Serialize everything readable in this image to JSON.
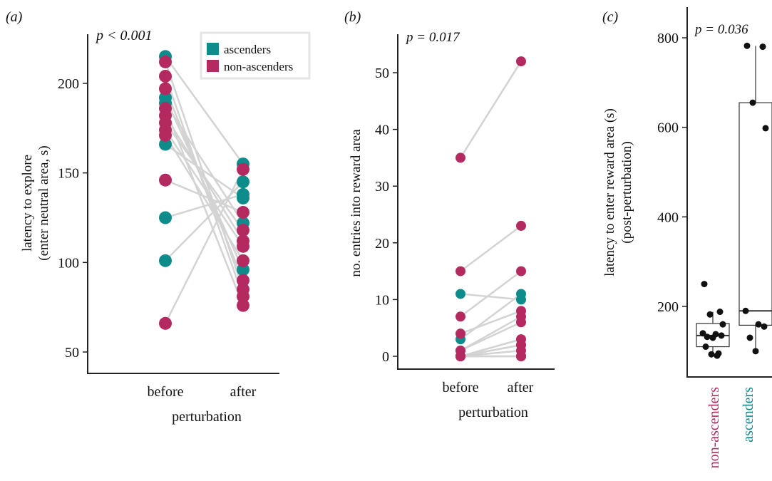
{
  "colors": {
    "ascenders": "#0e8c8c",
    "non_ascenders": "#b4295f",
    "pair_line": "#d3d3d3",
    "box_points": "#111111"
  },
  "chart_data": [
    {
      "panel_label": "(a)",
      "type": "scatter",
      "annotation": "p < 0.001",
      "ylabel_lines": [
        "latency to explore",
        "(enter neutral area, s)"
      ],
      "xlabel": "perturbation",
      "categories": [
        "before",
        "after"
      ],
      "ylim": [
        40,
        225
      ],
      "yticks": [
        50,
        100,
        150,
        200
      ],
      "legend": {
        "position": "top-right",
        "entries": [
          "ascenders",
          "non-ascenders"
        ]
      },
      "pairs": [
        {
          "group": "ascenders",
          "before": 215,
          "after": 155
        },
        {
          "group": "ascenders",
          "before": 192,
          "after": 96
        },
        {
          "group": "ascenders",
          "before": 189,
          "after": 122
        },
        {
          "group": "ascenders",
          "before": 166,
          "after": 136
        },
        {
          "group": "ascenders",
          "before": 125,
          "after": 138
        },
        {
          "group": "ascenders",
          "before": 101,
          "after": 145
        },
        {
          "group": "non-ascenders",
          "before": 212,
          "after": 85
        },
        {
          "group": "non-ascenders",
          "before": 204,
          "after": 81
        },
        {
          "group": "non-ascenders",
          "before": 197,
          "after": 90
        },
        {
          "group": "non-ascenders",
          "before": 186,
          "after": 76
        },
        {
          "group": "non-ascenders",
          "before": 182,
          "after": 112
        },
        {
          "group": "non-ascenders",
          "before": 178,
          "after": 118
        },
        {
          "group": "non-ascenders",
          "before": 174,
          "after": 109
        },
        {
          "group": "non-ascenders",
          "before": 171,
          "after": 101
        },
        {
          "group": "non-ascenders",
          "before": 146,
          "after": 128
        },
        {
          "group": "non-ascenders",
          "before": 66,
          "after": 152
        }
      ]
    },
    {
      "panel_label": "(b)",
      "type": "scatter",
      "annotation": "p = 0.017",
      "ylabel_lines": [
        "no. entries into reward area"
      ],
      "xlabel": "perturbation",
      "categories": [
        "before",
        "after"
      ],
      "ylim": [
        -2,
        55
      ],
      "yticks": [
        0,
        10,
        20,
        30,
        40,
        50
      ],
      "pairs": [
        {
          "group": "non-ascenders",
          "before": 35,
          "after": 52
        },
        {
          "group": "non-ascenders",
          "before": 15,
          "after": 23
        },
        {
          "group": "ascenders",
          "before": 11,
          "after": 10
        },
        {
          "group": "non-ascenders",
          "before": 7,
          "after": 15
        },
        {
          "group": "non-ascenders",
          "before": 4,
          "after": 8
        },
        {
          "group": "ascenders",
          "before": 3,
          "after": 11
        },
        {
          "group": "non-ascenders",
          "before": 1,
          "after": 7
        },
        {
          "group": "non-ascenders",
          "before": 1,
          "after": 6
        },
        {
          "group": "non-ascenders",
          "before": 0,
          "after": 3
        },
        {
          "group": "non-ascenders",
          "before": 0,
          "after": 2
        },
        {
          "group": "non-ascenders",
          "before": 0,
          "after": 1
        },
        {
          "group": "ascenders",
          "before": 0,
          "after": 2
        },
        {
          "group": "non-ascenders",
          "before": 0,
          "after": 0
        },
        {
          "group": "non-ascenders",
          "before": 0,
          "after": 0
        }
      ]
    },
    {
      "panel_label": "(c)",
      "type": "box",
      "annotation": "p = 0.036",
      "ylabel_lines": [
        "latency to enter reward area (s)",
        "(post-perturbation)"
      ],
      "categories": [
        "non-ascenders",
        "ascenders"
      ],
      "ylim": [
        60,
        810
      ],
      "yticks": [
        200,
        400,
        600,
        800
      ],
      "boxes": [
        {
          "group": "non-ascenders",
          "whisker_low": 90,
          "q1": 110,
          "median": 135,
          "q3": 162,
          "whisker_high": 188
        },
        {
          "group": "ascenders",
          "whisker_low": 100,
          "q1": 158,
          "median": 190,
          "q3": 655,
          "whisker_high": 782
        }
      ],
      "points": [
        {
          "group": "non-ascenders",
          "values": [
            250,
            188,
            182,
            160,
            140,
            138,
            135,
            132,
            130,
            110,
            95,
            93,
            90
          ]
        },
        {
          "group": "ascenders",
          "values": [
            782,
            780,
            655,
            598,
            190,
            160,
            155,
            130,
            100
          ]
        }
      ]
    }
  ]
}
